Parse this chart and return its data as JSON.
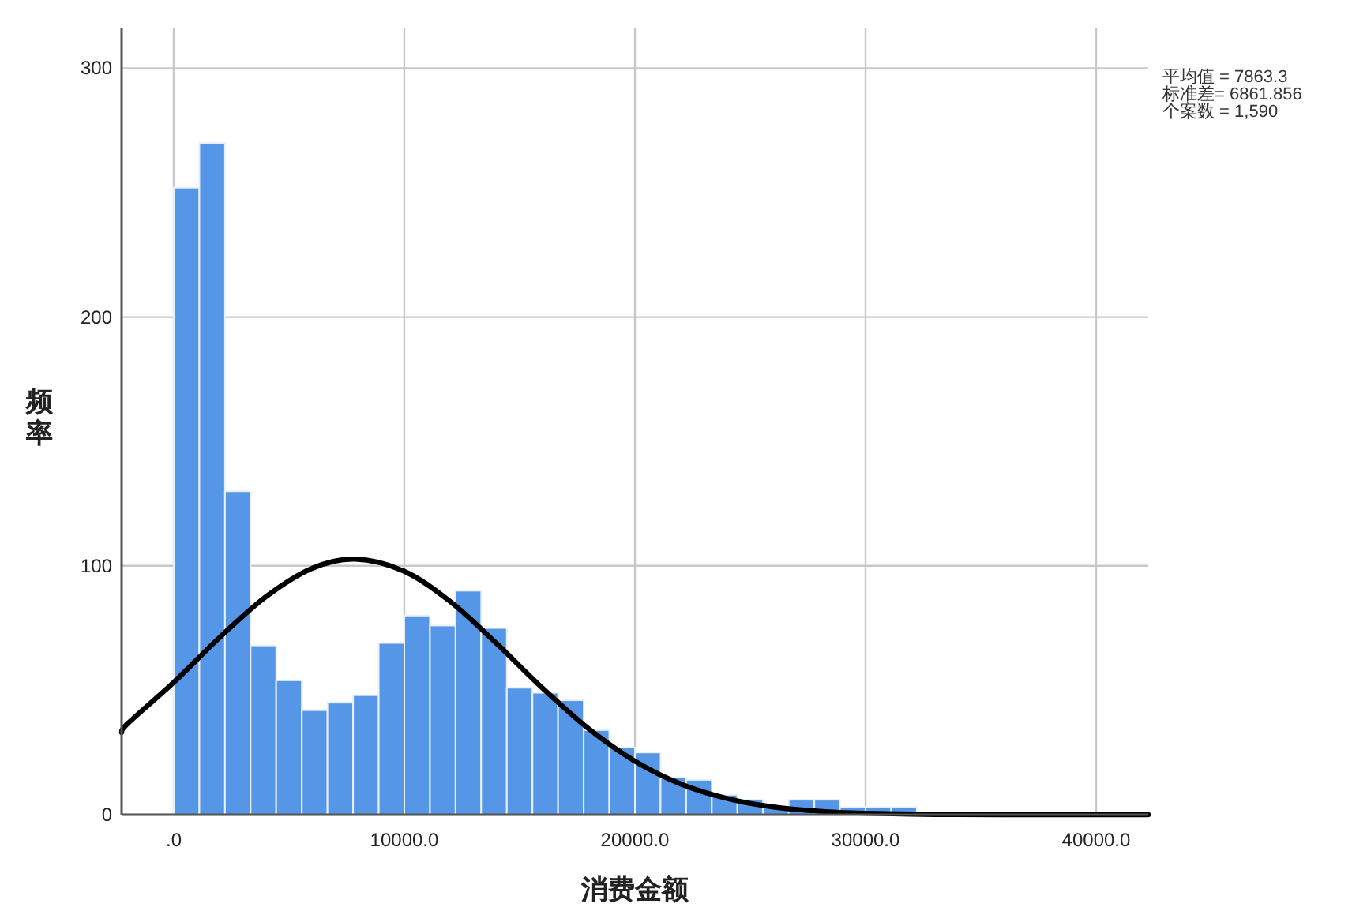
{
  "chart_data": {
    "type": "histogram",
    "xlabel": "消费金额",
    "ylabel": "频率",
    "bins": [
      0,
      1111,
      2222,
      3333,
      4444,
      5556,
      6667,
      7778,
      8889,
      10000,
      11111,
      12222,
      13333,
      14444,
      15556,
      16667,
      17778,
      18889,
      20000,
      21111,
      22222,
      23333,
      24444,
      25556,
      26667,
      27778,
      28889,
      30000,
      31111,
      32222
    ],
    "values": [
      252,
      270,
      130,
      68,
      54,
      42,
      45,
      48,
      69,
      80,
      76,
      90,
      75,
      51,
      49,
      46,
      34,
      27,
      25,
      15,
      14,
      8,
      6,
      3,
      6,
      6,
      3,
      3,
      3
    ],
    "color": "#5596e6",
    "series": [
      {
        "type": "line",
        "color": "#000000",
        "x": [
          -2260,
          -2000,
          0,
          2000,
          4000,
          6000,
          7863,
          10000,
          12000,
          14000,
          16000,
          18000,
          20000,
          22000,
          24000,
          26000,
          28000,
          30000,
          33000,
          36000,
          42260
        ],
        "values": [
          33,
          36.6,
          53.2,
          71.3,
          87.6,
          99,
          102.7,
          97.8,
          85.6,
          68.8,
          50.8,
          34.5,
          21.5,
          12.3,
          6.5,
          3.1,
          1.4,
          0.6,
          0.1,
          0,
          0
        ]
      }
    ],
    "xlim": [
      -2260,
      42260
    ],
    "ylim": [
      0,
      316
    ],
    "xticks": [
      {
        "value": 0,
        "label": ".0"
      },
      {
        "value": 10000,
        "label": "10000.0"
      },
      {
        "value": 20000,
        "label": "20000.0"
      },
      {
        "value": 30000,
        "label": "30000.0"
      },
      {
        "value": 40000,
        "label": "40000.0"
      }
    ],
    "yticks": [
      0,
      100,
      200,
      300
    ],
    "grid": true,
    "annotations": [
      "平均值 = 7863.3",
      "标准差= 6861.856",
      "个案数 = 1,590"
    ]
  }
}
